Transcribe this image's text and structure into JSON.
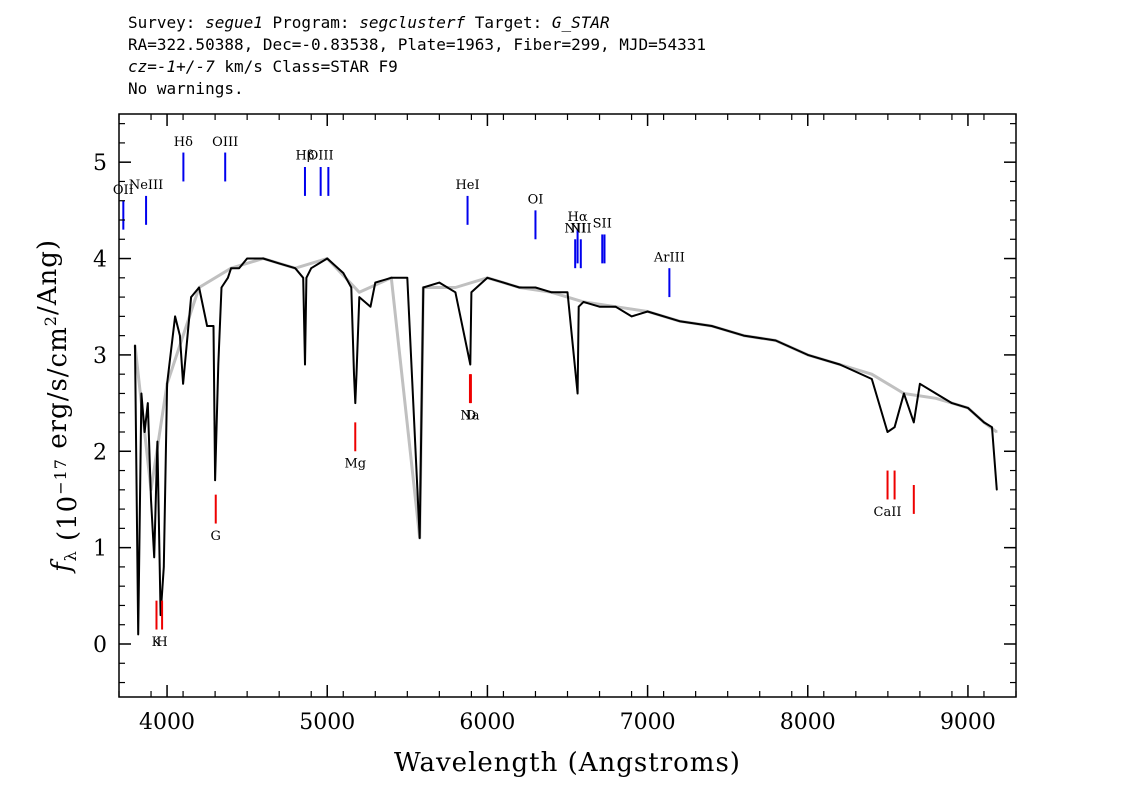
{
  "header": {
    "survey_label": "Survey: ",
    "survey_value": "segue1",
    "program_label": " Program: ",
    "program_value": "segclusterf",
    "target_label": " Target: ",
    "target_value": "G_STAR",
    "line2": "RA=322.50388, Dec=-0.83538, Plate=1963, Fiber=299, MJD=54331",
    "cz_label": "cz=",
    "cz_value": "-1+/-7",
    "cz_rest": " km/s Class=STAR F9",
    "line4": "No warnings."
  },
  "chart_data": {
    "type": "line",
    "xlabel": "Wavelength (Angstroms)",
    "ylabel": "f_λ (10^-17 erg/s/cm^2/Ang)",
    "xlim": [
      3700,
      9300
    ],
    "ylim": [
      -0.55,
      5.5
    ],
    "x_ticks": [
      4000,
      5000,
      6000,
      7000,
      8000,
      9000
    ],
    "y_ticks": [
      0,
      1,
      2,
      3,
      4,
      5
    ],
    "series": [
      {
        "name": "",
        "color": "#000000",
        "x": [
          3800,
          3820,
          3840,
          3860,
          3880,
          3900,
          3920,
          3940,
          3960,
          3980,
          4000,
          4050,
          4080,
          4100,
          4150,
          4200,
          4250,
          4290,
          4300,
          4320,
          4340,
          4380,
          4400,
          4450,
          4500,
          4600,
          4700,
          4800,
          4850,
          4861,
          4870,
          4900,
          5000,
          5100,
          5150,
          5167,
          5175,
          5183,
          5200,
          5270,
          5300,
          5400,
          5500,
          5577,
          5600,
          5700,
          5800,
          5893,
          5900,
          6000,
          6100,
          6200,
          6300,
          6400,
          6500,
          6563,
          6570,
          6600,
          6700,
          6800,
          6900,
          7000,
          7200,
          7400,
          7600,
          7800,
          8000,
          8200,
          8400,
          8498,
          8542,
          8600,
          8662,
          8700,
          8800,
          8900,
          9000,
          9100,
          9150,
          9180
        ],
        "y": [
          3.1,
          0.1,
          2.6,
          2.2,
          2.5,
          1.5,
          0.9,
          2.1,
          0.3,
          0.8,
          2.7,
          3.4,
          3.2,
          2.7,
          3.6,
          3.7,
          3.3,
          3.3,
          1.7,
          2.9,
          3.7,
          3.8,
          3.9,
          3.9,
          4.0,
          4.0,
          3.95,
          3.9,
          3.8,
          2.9,
          3.8,
          3.9,
          4.0,
          3.85,
          3.7,
          2.8,
          2.5,
          2.8,
          3.6,
          3.5,
          3.75,
          3.8,
          3.8,
          1.1,
          3.7,
          3.75,
          3.65,
          2.9,
          3.65,
          3.8,
          3.75,
          3.7,
          3.7,
          3.65,
          3.65,
          2.6,
          3.5,
          3.55,
          3.5,
          3.5,
          3.4,
          3.45,
          3.35,
          3.3,
          3.2,
          3.15,
          3.0,
          2.9,
          2.75,
          2.2,
          2.25,
          2.6,
          2.3,
          2.7,
          2.6,
          2.5,
          2.45,
          2.3,
          2.25,
          1.6
        ]
      },
      {
        "name": "",
        "color": "#c0c0c0",
        "x": [
          3800,
          3900,
          4000,
          4200,
          4400,
          4600,
          4800,
          5000,
          5200,
          5400,
          5577,
          5600,
          5800,
          6000,
          6200,
          6400,
          6600,
          6800,
          7000,
          7200,
          7400,
          7600,
          7800,
          8000,
          8200,
          8400,
          8600,
          8800,
          8900,
          9000,
          9100,
          9180
        ],
        "y": [
          3.1,
          1.6,
          2.7,
          3.7,
          3.9,
          4.0,
          3.9,
          4.0,
          3.65,
          3.8,
          1.1,
          3.7,
          3.7,
          3.8,
          3.7,
          3.65,
          3.55,
          3.5,
          3.45,
          3.35,
          3.3,
          3.2,
          3.15,
          3.0,
          2.9,
          2.8,
          2.6,
          2.55,
          2.5,
          2.45,
          2.3,
          2.2
        ]
      }
    ],
    "emission_lines": [
      {
        "label": "OII",
        "x": 3727,
        "y": [
          4.3,
          4.6
        ],
        "label_y": 4.67
      },
      {
        "label": "NeIII",
        "x": 3869,
        "y": [
          4.35,
          4.65
        ],
        "label_y": 4.72
      },
      {
        "label": "Hδ",
        "x": 4102,
        "y": [
          4.8,
          5.1
        ],
        "label_y": 5.17
      },
      {
        "label": "OIII",
        "x": 4363,
        "y": [
          4.8,
          5.1
        ],
        "label_y": 5.17
      },
      {
        "label": "Hβ",
        "x": 4861,
        "y": [
          4.65,
          4.95
        ],
        "label_y": 5.03
      },
      {
        "label": "OIII",
        "x": 4959,
        "y": [
          4.65,
          4.95
        ],
        "label_y": 5.03
      },
      {
        "label": "",
        "x": 5007,
        "y": [
          4.65,
          4.95
        ],
        "label_y": 5.03
      },
      {
        "label": "HeI",
        "x": 5876,
        "y": [
          4.35,
          4.65
        ],
        "label_y": 4.72
      },
      {
        "label": "OI",
        "x": 6300,
        "y": [
          4.2,
          4.5
        ],
        "label_y": 4.57
      },
      {
        "label": "NII",
        "x": 6548,
        "y": [
          3.9,
          4.2
        ],
        "label_y": 4.27
      },
      {
        "label": "Hα",
        "x": 6563,
        "y": [
          3.95,
          4.3
        ],
        "label_y": 4.39
      },
      {
        "label": "NII",
        "x": 6583,
        "y": [
          3.9,
          4.2
        ],
        "label_y": 4.27
      },
      {
        "label": "SII",
        "x": 6717,
        "y": [
          3.95,
          4.25
        ],
        "label_y": 4.32
      },
      {
        "label": "",
        "x": 6731,
        "y": [
          3.95,
          4.25
        ],
        "label_y": 4.32
      },
      {
        "label": "ArIII",
        "x": 7136,
        "y": [
          3.6,
          3.9
        ],
        "label_y": 3.97
      }
    ],
    "absorption_lines": [
      {
        "label": "K",
        "x": 3934,
        "y": [
          0.15,
          0.45
        ],
        "label_y": -0.02
      },
      {
        "label": "H",
        "x": 3969,
        "y": [
          0.15,
          0.45
        ],
        "label_y": -0.02
      },
      {
        "label": "G",
        "x": 4304,
        "y": [
          1.25,
          1.55
        ],
        "label_y": 1.08
      },
      {
        "label": "Mg",
        "x": 5175,
        "y": [
          2.0,
          2.3
        ],
        "label_y": 1.83
      },
      {
        "label": "Na",
        "x": 5891,
        "y": [
          2.5,
          2.8
        ],
        "label_y": 2.33
      },
      {
        "label": "D",
        "x": 5897,
        "y": [
          2.5,
          2.8
        ],
        "label_y": 2.33
      },
      {
        "label": "CaII",
        "x": 8498,
        "y": [
          1.5,
          1.8
        ],
        "label_y": 1.33
      },
      {
        "label": "",
        "x": 8542,
        "y": [
          1.5,
          1.8
        ],
        "label_y": 1.33
      },
      {
        "label": "",
        "x": 8662,
        "y": [
          1.35,
          1.65
        ],
        "label_y": 1.33
      }
    ]
  }
}
